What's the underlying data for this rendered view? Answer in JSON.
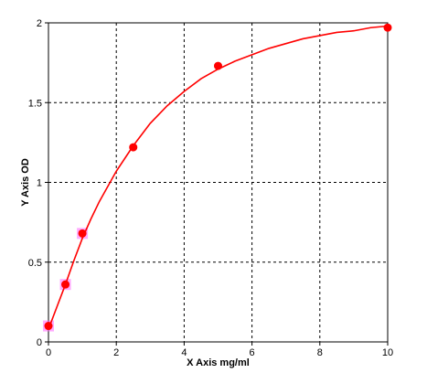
{
  "chart_data": {
    "type": "scatter",
    "title": "",
    "xlabel": "X Axis mg/ml",
    "ylabel": "Y Axis OD",
    "xlim": [
      0,
      10
    ],
    "ylim": [
      0,
      2
    ],
    "x_ticks": [
      0,
      2,
      4,
      6,
      8,
      10
    ],
    "y_ticks": [
      0,
      0.5,
      1,
      1.5,
      2
    ],
    "x_tick_labels": [
      "0",
      "2",
      "4",
      "6",
      "8",
      "10"
    ],
    "y_tick_labels": [
      "0",
      "0.5",
      "1",
      "1.5",
      "2"
    ],
    "grid": true,
    "grid_style": "dashed",
    "points": {
      "x": [
        0,
        0.5,
        1,
        2.5,
        5,
        10
      ],
      "y": [
        0.1,
        0.36,
        0.68,
        1.22,
        1.73,
        1.97
      ],
      "color": "#ff0000"
    },
    "fit_curve": {
      "type": "line",
      "color": "#ff0000",
      "x": [
        0,
        0.25,
        0.5,
        0.75,
        1,
        1.25,
        1.5,
        2,
        2.5,
        3,
        3.5,
        4,
        4.5,
        5,
        5.5,
        6,
        6.5,
        7,
        7.5,
        8,
        8.5,
        9,
        9.5,
        10
      ],
      "y": [
        0.08,
        0.22,
        0.36,
        0.51,
        0.65,
        0.77,
        0.88,
        1.07,
        1.23,
        1.37,
        1.48,
        1.57,
        1.65,
        1.71,
        1.76,
        1.8,
        1.84,
        1.87,
        1.9,
        1.92,
        1.94,
        1.95,
        1.97,
        1.98
      ]
    },
    "colors": {
      "axis": "#000000",
      "grid": "#000000",
      "highlight": "#ff66ff"
    }
  }
}
